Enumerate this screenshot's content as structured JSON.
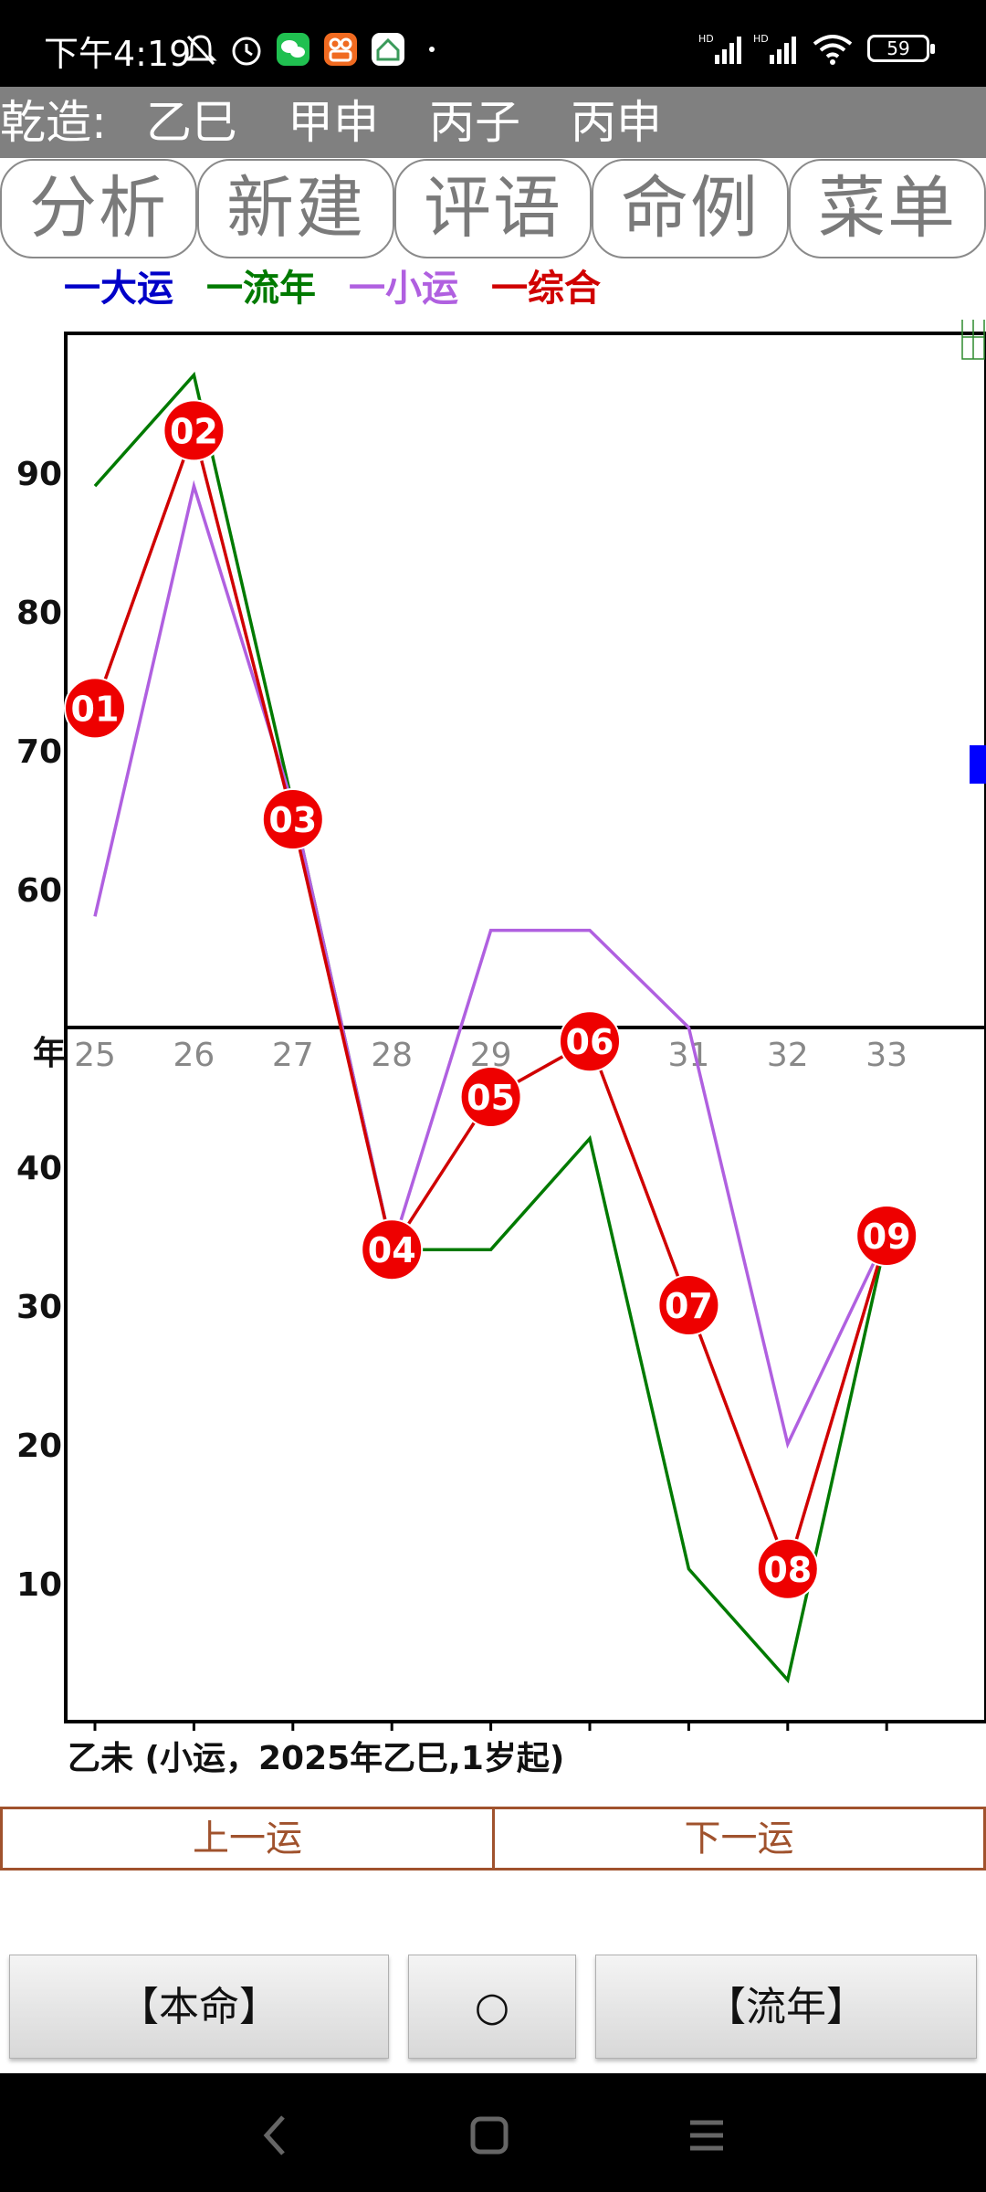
{
  "status_bar": {
    "time": "下午4:19",
    "battery": "59",
    "icons": [
      "mute-bell-icon",
      "alarm-icon",
      "wechat-icon",
      "app-icon",
      "home-app-icon",
      "dot-icon",
      "hd-signal-icon",
      "hd-signal-icon",
      "wifi-icon",
      "battery-icon"
    ]
  },
  "bazi": {
    "label": "乾造:",
    "pillars": [
      "乙巳",
      "甲申",
      "丙子",
      "丙申"
    ]
  },
  "tabs": [
    "分析",
    "新建",
    "评语",
    "命例",
    "菜单"
  ],
  "legend": [
    {
      "label": "一大运",
      "color": "#0000c8"
    },
    {
      "label": "一流年",
      "color": "#007a00"
    },
    {
      "label": "一小运",
      "color": "#b060e0"
    },
    {
      "label": "一综合",
      "color": "#d00000"
    }
  ],
  "chart_data": {
    "type": "line",
    "x": [
      "25",
      "26",
      "27",
      "28",
      "29",
      "30",
      "31",
      "32",
      "33"
    ],
    "x_axis_label": "年",
    "x_tick_labels_shown": [
      "25",
      "26",
      "27",
      "28",
      "29",
      "31",
      "32",
      "33"
    ],
    "y_ticks": [
      10,
      20,
      30,
      40,
      60,
      70,
      80,
      90
    ],
    "ylim": [
      0,
      100
    ],
    "axis_line_y": 50,
    "series": [
      {
        "name": "一流年",
        "color": "#007a00",
        "values": [
          89,
          97,
          66,
          34,
          34,
          42,
          11,
          3,
          35
        ]
      },
      {
        "name": "一小运",
        "color": "#b060e0",
        "values": [
          58,
          89,
          66,
          34,
          57,
          57,
          50,
          20,
          35
        ]
      },
      {
        "name": "一综合",
        "color": "#d00000",
        "values": [
          73,
          93,
          65,
          34,
          45,
          49,
          30,
          11,
          35
        ]
      }
    ],
    "point_labels": [
      "01",
      "02",
      "03",
      "04",
      "05",
      "06",
      "07",
      "08",
      "09"
    ],
    "marker_color": "#ee0000"
  },
  "caption": "乙未 (小运，2025年乙巳,1岁起)",
  "nav": {
    "prev": "上一运",
    "next": "下一运"
  },
  "buttons": {
    "left": "【本命】",
    "middle": "○",
    "right": "【流年】"
  },
  "system_nav": [
    "back-icon",
    "home-icon",
    "menu-icon"
  ]
}
